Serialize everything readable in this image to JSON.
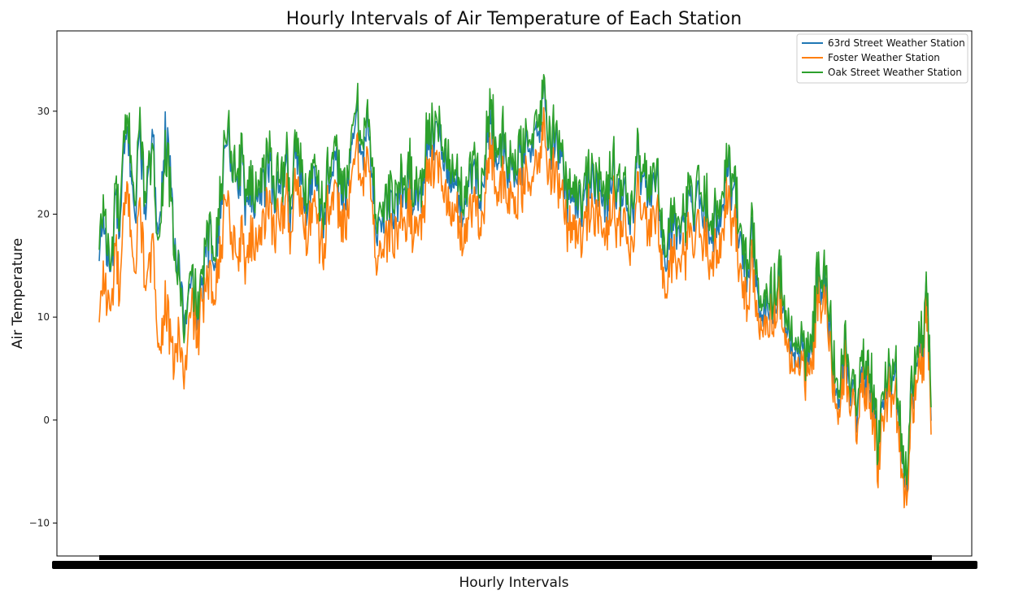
{
  "chart_data": {
    "type": "line",
    "title": "Hourly Intervals of Air Temperature of Each Station",
    "xlabel": "Hourly Intervals",
    "ylabel": "Air Temperature",
    "ylim": [
      -13.2,
      37.8
    ],
    "yticks": [
      -10,
      0,
      10,
      20,
      30
    ],
    "ytick_labels": [
      "−10",
      "0",
      "10",
      "20",
      "30"
    ],
    "xtick_labels_legible": false,
    "grid": false,
    "legend_position": "top-right",
    "x_count": 205,
    "series": [
      {
        "name": "63rd Street Weather Station",
        "color": "#1f77b4",
        "values": [
          15.0,
          20.6,
          15.5,
          14.3,
          22.1,
          17.6,
          25.1,
          28.0,
          24.0,
          19.8,
          28.7,
          21.6,
          22.1,
          27.0,
          21.8,
          18.9,
          28.0,
          25.4,
          19.5,
          15.2,
          14.2,
          8.6,
          11.8,
          13.0,
          9.8,
          11.2,
          16.0,
          17.4,
          15.8,
          18.5,
          21.0,
          28.2,
          26.5,
          24.0,
          23.0,
          25.4,
          21.0,
          22.6,
          20.8,
          23.3,
          22.2,
          24.2,
          25.0,
          21.0,
          24.5,
          22.0,
          25.1,
          19.4,
          27.4,
          24.1,
          22.5,
          21.0,
          23.3,
          25.6,
          21.1,
          19.2,
          23.5,
          22.4,
          24.9,
          23.5,
          22.6,
          21.6,
          26.5,
          30.5,
          26.8,
          27.3,
          28.5,
          22.6,
          19.0,
          20.1,
          19.4,
          21.5,
          20.3,
          21.0,
          22.6,
          21.0,
          24.8,
          20.5,
          22.8,
          21.3,
          26.2,
          28.8,
          26.2,
          27.6,
          26.9,
          24.5,
          23.6,
          22.2,
          23.0,
          20.4,
          22.2,
          23.1,
          24.6,
          23.5,
          21.7,
          26.3,
          30.9,
          26.8,
          24.1,
          26.9,
          23.7,
          24.4,
          24.5,
          24.8,
          25.3,
          26.4,
          27.8,
          26.8,
          27.8,
          33.5,
          25.8,
          27.4,
          26.7,
          25.0,
          23.6,
          21.0,
          22.4,
          21.6,
          20.5,
          20.9,
          24.3,
          23.6,
          23.1,
          22.4,
          19.5,
          23.0,
          24.9,
          22.3,
          20.5,
          22.4,
          19.0,
          18.6,
          26.4,
          21.7,
          22.6,
          21.8,
          22.0,
          24.0,
          17.0,
          15.1,
          18.8,
          19.1,
          17.8,
          18.0,
          19.5,
          21.6,
          19.4,
          22.1,
          19.8,
          20.7,
          18.7,
          18.8,
          19.3,
          21.9,
          25.1,
          22.4,
          22.0,
          17.0,
          16.3,
          14.1,
          18.3,
          13.5,
          9.6,
          11.4,
          11.8,
          11.7,
          12.8,
          13.5,
          11.1,
          8.5,
          6.5,
          6.1,
          7.7,
          5.4,
          5.4,
          7.4,
          13.4,
          13.3,
          12.9,
          9.9,
          4.9,
          2.5,
          3.9,
          6.7,
          3.2,
          2.1,
          0.6,
          5.1,
          4.6,
          3.8,
          0.5,
          -3.4,
          2.0,
          3.9,
          4.0,
          5.5,
          1.5,
          -4.2,
          -7.2,
          2.1,
          3.3,
          7.9,
          6.4,
          12.3,
          1.1
        ]
      },
      {
        "name": "Foster Weather Station",
        "color": "#ff7f0e",
        "values": [
          9.0,
          14.6,
          11.5,
          10.3,
          17.1,
          11.6,
          19.1,
          22.0,
          18.0,
          13.8,
          21.7,
          14.6,
          13.1,
          17.0,
          11.8,
          5.9,
          12.0,
          9.4,
          5.5,
          7.2,
          7.2,
          3.6,
          8.8,
          11.0,
          7.8,
          10.2,
          12.0,
          13.4,
          12.8,
          15.5,
          16.0,
          23.2,
          19.5,
          17.0,
          16.0,
          18.4,
          15.0,
          17.6,
          16.8,
          19.3,
          18.2,
          20.2,
          21.0,
          18.0,
          21.5,
          19.0,
          22.1,
          16.4,
          24.4,
          21.1,
          19.5,
          18.0,
          20.3,
          22.6,
          18.1,
          16.2,
          20.5,
          19.4,
          21.9,
          20.5,
          19.6,
          18.6,
          23.5,
          27.5,
          23.8,
          24.3,
          25.5,
          19.6,
          16.0,
          17.1,
          16.4,
          18.5,
          17.3,
          18.0,
          19.6,
          18.0,
          21.8,
          17.5,
          19.8,
          18.3,
          23.2,
          25.8,
          23.2,
          24.6,
          23.9,
          21.5,
          20.6,
          19.2,
          20.0,
          17.4,
          19.2,
          20.1,
          21.6,
          20.5,
          18.7,
          23.3,
          27.9,
          23.8,
          21.1,
          23.9,
          20.7,
          21.4,
          21.5,
          21.8,
          22.3,
          23.4,
          24.8,
          23.8,
          24.8,
          30.5,
          22.8,
          24.4,
          23.7,
          22.0,
          20.6,
          18.0,
          19.4,
          18.6,
          17.5,
          17.9,
          21.3,
          20.6,
          20.1,
          19.4,
          16.5,
          20.0,
          21.9,
          19.3,
          17.5,
          19.4,
          16.0,
          15.6,
          23.4,
          18.7,
          19.6,
          18.8,
          19.0,
          21.0,
          14.0,
          12.1,
          15.8,
          16.1,
          14.8,
          15.0,
          16.5,
          18.6,
          16.4,
          19.1,
          16.8,
          17.7,
          15.7,
          15.8,
          16.3,
          18.9,
          22.1,
          19.4,
          19.0,
          14.0,
          13.3,
          11.1,
          15.3,
          10.5,
          8.1,
          9.9,
          10.3,
          10.2,
          11.3,
          12.0,
          9.6,
          7.0,
          5.0,
          4.6,
          6.2,
          3.9,
          3.9,
          5.9,
          11.9,
          11.8,
          11.4,
          8.4,
          3.4,
          1.0,
          2.4,
          5.2,
          1.7,
          0.6,
          -0.9,
          3.6,
          3.1,
          2.3,
          -1.0,
          -4.9,
          0.5,
          2.4,
          2.5,
          4.0,
          0.0,
          -5.7,
          -8.7,
          0.6,
          1.8,
          6.4,
          4.9,
          10.8,
          -0.4
        ]
      },
      {
        "name": "Oak Street Weather Station",
        "color": "#2ca02c",
        "values": [
          16.0,
          21.6,
          16.5,
          15.3,
          23.1,
          18.6,
          26.1,
          29.0,
          25.0,
          20.8,
          29.7,
          22.6,
          23.1,
          26.0,
          20.8,
          17.9,
          27.0,
          24.4,
          18.5,
          14.2,
          13.2,
          7.6,
          12.8,
          14.0,
          10.8,
          12.2,
          17.0,
          18.4,
          16.8,
          19.5,
          22.0,
          29.2,
          27.5,
          25.0,
          24.0,
          26.4,
          22.0,
          23.6,
          21.8,
          24.3,
          23.2,
          25.2,
          26.0,
          22.0,
          25.5,
          23.0,
          26.1,
          20.4,
          28.4,
          25.1,
          23.5,
          22.0,
          24.3,
          26.6,
          22.1,
          20.2,
          24.5,
          23.4,
          25.9,
          24.5,
          23.6,
          22.6,
          27.5,
          31.5,
          27.8,
          28.3,
          29.5,
          23.6,
          20.0,
          21.1,
          20.4,
          22.5,
          21.3,
          22.0,
          23.6,
          22.0,
          25.8,
          21.5,
          23.8,
          22.3,
          27.2,
          29.8,
          27.2,
          28.6,
          27.9,
          25.5,
          24.6,
          23.2,
          24.0,
          21.4,
          23.2,
          24.1,
          25.6,
          24.5,
          22.7,
          27.3,
          31.9,
          27.8,
          25.1,
          27.9,
          24.7,
          25.4,
          25.5,
          25.8,
          26.3,
          27.4,
          28.8,
          27.8,
          28.8,
          34.5,
          26.8,
          28.4,
          27.7,
          26.0,
          24.6,
          22.0,
          23.4,
          22.6,
          21.5,
          21.9,
          25.3,
          24.6,
          24.1,
          23.4,
          20.5,
          24.0,
          25.9,
          23.3,
          21.5,
          23.4,
          20.0,
          19.6,
          27.4,
          22.7,
          23.6,
          22.8,
          23.0,
          25.0,
          18.0,
          16.1,
          19.8,
          20.1,
          18.8,
          19.0,
          20.5,
          22.6,
          20.4,
          23.1,
          20.8,
          21.7,
          19.7,
          19.8,
          20.3,
          22.9,
          26.1,
          23.4,
          23.0,
          18.0,
          17.3,
          15.1,
          19.3,
          14.5,
          10.6,
          12.4,
          12.8,
          12.7,
          13.8,
          14.5,
          12.1,
          9.5,
          7.5,
          7.1,
          8.7,
          6.4,
          6.4,
          8.4,
          14.4,
          14.3,
          13.9,
          10.9,
          5.9,
          3.5,
          4.9,
          7.7,
          4.2,
          3.1,
          1.6,
          6.1,
          5.6,
          4.8,
          1.5,
          -2.4,
          3.0,
          4.9,
          5.0,
          6.5,
          2.5,
          -3.2,
          -6.2,
          3.1,
          4.3,
          8.9,
          7.4,
          13.3,
          2.1
        ]
      }
    ]
  }
}
